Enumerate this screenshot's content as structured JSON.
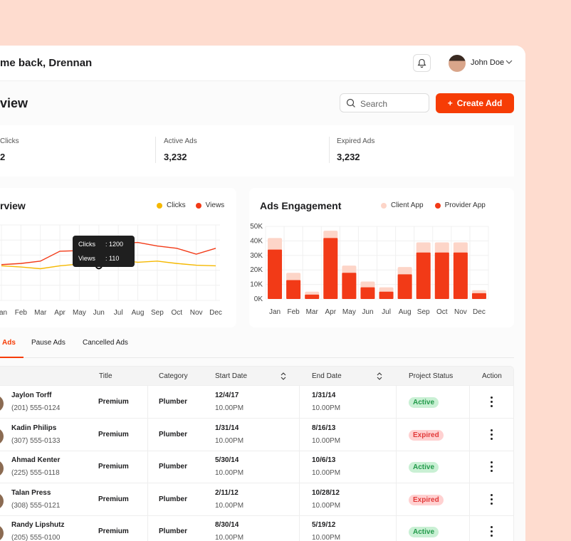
{
  "header": {
    "welcome": "me back, Drennan",
    "user_name": "John Doe"
  },
  "toolbar": {
    "page_title": "view",
    "search_placeholder": "Search",
    "create_label": "Create Add"
  },
  "stats": [
    {
      "label": "Clicks",
      "value": "2"
    },
    {
      "label": "Active Ads",
      "value": "3,232"
    },
    {
      "label": "Expired Ads",
      "value": "3,232"
    }
  ],
  "overview": {
    "title": "rview",
    "legend": [
      {
        "name": "Clicks",
        "color": "#f5b800"
      },
      {
        "name": "Views",
        "color": "#f23a17"
      }
    ],
    "tooltip": {
      "clicks_label": "Clicks",
      "clicks_value": ": 1200",
      "views_label": "Views",
      "views_value": ": 110"
    }
  },
  "engagement": {
    "title": "Ads Engagement",
    "legend": [
      {
        "name": "Client App",
        "color": "#fdd5c8"
      },
      {
        "name": "Provider App",
        "color": "#f23a17"
      }
    ]
  },
  "chart_data": [
    {
      "type": "line",
      "categories": [
        "Jan",
        "Feb",
        "Mar",
        "Apr",
        "May",
        "Jun",
        "Jul",
        "Aug",
        "Sep",
        "Oct",
        "Nov",
        "Dec"
      ],
      "series": [
        {
          "name": "Clicks",
          "values": [
            30,
            28,
            25,
            30,
            33,
            30,
            40,
            36,
            38,
            34,
            31,
            30
          ]
        },
        {
          "name": "Views",
          "values": [
            32,
            34,
            38,
            55,
            56,
            63,
            68,
            70,
            64,
            60,
            50,
            60
          ]
        }
      ]
    },
    {
      "type": "bar",
      "categories": [
        "Jan",
        "Feb",
        "Mar",
        "Apr",
        "May",
        "Jun",
        "Jul",
        "Aug",
        "Sep",
        "Oct",
        "Nov",
        "Dec"
      ],
      "series": [
        {
          "name": "Client App",
          "values": [
            42,
            18,
            5,
            47,
            23,
            12,
            8,
            22,
            39,
            39,
            39,
            6
          ]
        },
        {
          "name": "Provider App",
          "values": [
            34,
            13,
            3,
            42,
            18,
            8,
            5,
            17,
            32,
            32,
            32,
            4
          ]
        }
      ],
      "yticks": [
        "0K",
        "10K",
        "20K",
        "30K",
        "40K",
        "50K"
      ],
      "ylim": [
        0,
        50
      ]
    }
  ],
  "tabs": [
    {
      "label": "Ads"
    },
    {
      "label": "Pause Ads"
    },
    {
      "label": "Cancelled Ads"
    }
  ],
  "table": {
    "columns": [
      "Title",
      "Category",
      "Start Date",
      "End Date",
      "Project Status",
      "Action"
    ],
    "rows": [
      {
        "name": "Jaylon Torff",
        "phone": "(201) 555-0124",
        "title": "Premium",
        "category": "Plumber",
        "start": "12/4/17",
        "start_time": "10.00PM",
        "end": "1/31/14",
        "end_time": "10.00PM",
        "status": "Active"
      },
      {
        "name": "Kadin Philips",
        "phone": "(307) 555-0133",
        "title": "Premium",
        "category": "Plumber",
        "start": "1/31/14",
        "start_time": "10.00PM",
        "end": "8/16/13",
        "end_time": "10.00PM",
        "status": "Expired"
      },
      {
        "name": "Ahmad Kenter",
        "phone": "(225) 555-0118",
        "title": "Premium",
        "category": "Plumber",
        "start": "5/30/14",
        "start_time": "10.00PM",
        "end": "10/6/13",
        "end_time": "10.00PM",
        "status": "Active"
      },
      {
        "name": "Talan Press",
        "phone": "(308) 555-0121",
        "title": "Premium",
        "category": "Plumber",
        "start": "2/11/12",
        "start_time": "10.00PM",
        "end": "10/28/12",
        "end_time": "10.00PM",
        "status": "Expired"
      },
      {
        "name": "Randy Lipshutz",
        "phone": "(205) 555-0100",
        "title": "Premium",
        "category": "Plumber",
        "start": "8/30/14",
        "start_time": "10.00PM",
        "end": "5/19/12",
        "end_time": "10.00PM",
        "status": "Active"
      }
    ]
  }
}
